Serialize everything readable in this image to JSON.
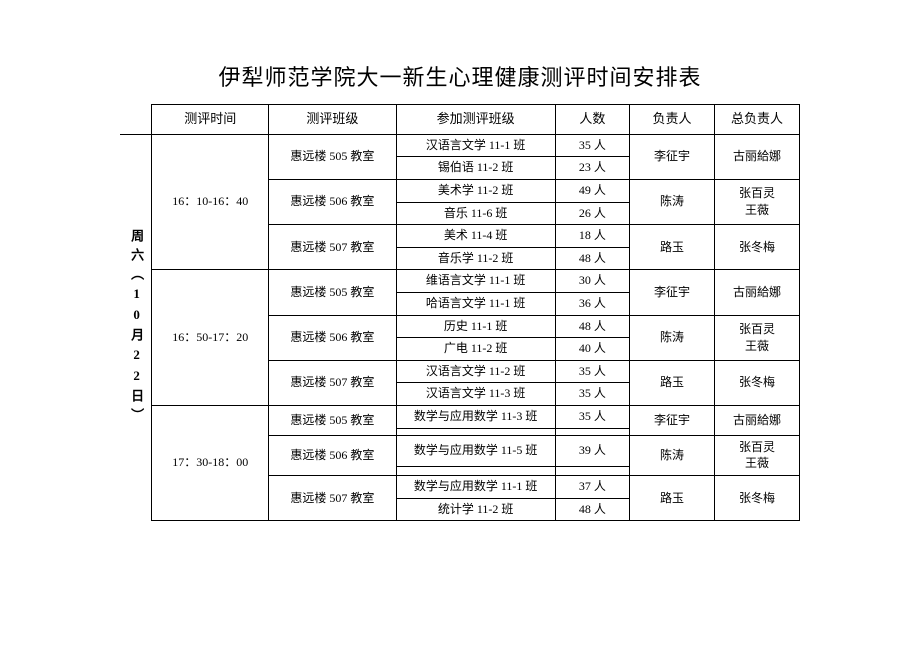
{
  "title": "伊犁师范学院大一新生心理健康测评时间安排表",
  "headers": {
    "time": "测评时间",
    "room": "测评班级",
    "class": "参加测评班级",
    "count": "人数",
    "person": "负责人",
    "chief": "总负责人"
  },
  "day_label": "周六（10月22日）",
  "slots": [
    {
      "time": "16：10-16：40",
      "rooms": [
        {
          "room": "惠远楼 505 教室",
          "classes": [
            {
              "name": "汉语言文学 11-1 班",
              "count": "35 人"
            },
            {
              "name": "锡伯语 11-2 班",
              "count": "23 人"
            }
          ],
          "person": "李征宇",
          "chief": "古丽給娜"
        },
        {
          "room": "惠远楼 506 教室",
          "classes": [
            {
              "name": "美术学 11-2 班",
              "count": "49 人"
            },
            {
              "name": "音乐 11-6 班",
              "count": "26 人"
            }
          ],
          "person": "陈涛",
          "chief": "张百灵<br>王薇"
        },
        {
          "room": "惠远楼 507 教室",
          "classes": [
            {
              "name": "美术 11-4 班",
              "count": "18 人"
            },
            {
              "name": "音乐学 11-2 班",
              "count": "48 人"
            }
          ],
          "person": "路玉",
          "chief": "张冬梅"
        }
      ]
    },
    {
      "time": "16：50-17：20",
      "rooms": [
        {
          "room": "惠远楼 505 教室",
          "classes": [
            {
              "name": "维语言文学 11-1 班",
              "count": "30 人"
            },
            {
              "name": "哈语言文学 11-1 班",
              "count": "36 人"
            }
          ],
          "person": "李征宇",
          "chief": "古丽給娜"
        },
        {
          "room": "惠远楼 506 教室",
          "classes": [
            {
              "name": "历史 11-1 班",
              "count": "48 人"
            },
            {
              "name": "广电 11-2 班",
              "count": "40 人"
            }
          ],
          "person": "陈涛",
          "chief": "张百灵<br>王薇"
        },
        {
          "room": "惠远楼 507 教室",
          "classes": [
            {
              "name": "汉语言文学 11-2 班",
              "count": "35 人"
            },
            {
              "name": "汉语言文学 11-3 班",
              "count": "35 人"
            }
          ],
          "person": "路玉",
          "chief": "张冬梅"
        }
      ]
    },
    {
      "time": "17：30-18：00",
      "rooms": [
        {
          "room": "惠远楼 505 教室",
          "classes": [
            {
              "name": "数学与应用数学 11-3 班",
              "count": "35 人"
            },
            {
              "name": "",
              "count": ""
            }
          ],
          "person": "李征宇",
          "chief": "古丽給娜"
        },
        {
          "room": "惠远楼 506 教室",
          "classes": [
            {
              "name": "数学与应用数学 11-5 班",
              "count": "39 人"
            },
            {
              "name": "",
              "count": ""
            }
          ],
          "person": "陈涛",
          "chief": "张百灵<br>王薇"
        },
        {
          "room": "惠远楼 507 教室",
          "classes": [
            {
              "name": "数学与应用数学 11-1 班",
              "count": "37 人"
            },
            {
              "name": "统计学 11-2 班",
              "count": "48 人"
            }
          ],
          "person": "路玉",
          "chief": "张冬梅"
        }
      ]
    }
  ],
  "colwidths": {
    "day": 30,
    "time": 110,
    "room": 120,
    "class": 150,
    "count": 70,
    "person": 80,
    "chief": 80
  }
}
